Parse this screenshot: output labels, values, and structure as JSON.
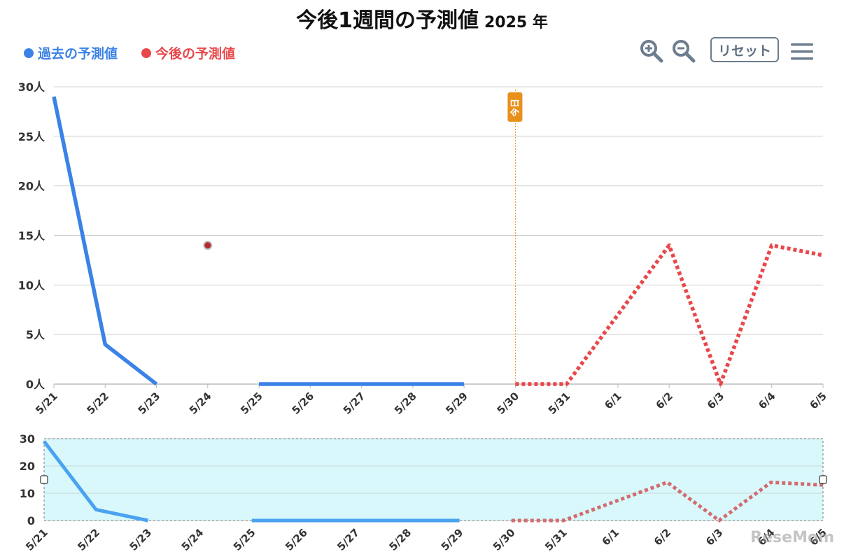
{
  "title": {
    "main": "今後1週間の予測値",
    "year": "2025 年"
  },
  "legend": {
    "past": "過去の予測値",
    "future": "今後の予測値"
  },
  "toolbar": {
    "reset_label": "リセット"
  },
  "colors": {
    "past": "#3b82e6",
    "future": "#e8474a",
    "today_line": "#e8901a",
    "navigator_fill": "#d8f8fb"
  },
  "watermark": "ReseMom",
  "chart_data": {
    "type": "line",
    "categories": [
      "5/21",
      "5/22",
      "5/23",
      "5/24",
      "5/25",
      "5/26",
      "5/27",
      "5/28",
      "5/29",
      "5/30",
      "5/31",
      "6/1",
      "6/2",
      "6/3",
      "6/4",
      "6/5"
    ],
    "ylim": [
      0,
      30
    ],
    "yticks": [
      0,
      5,
      10,
      15,
      20,
      25,
      30
    ],
    "ytick_labels": [
      "0人",
      "5人",
      "10人",
      "15人",
      "20人",
      "25人",
      "30人"
    ],
    "today_index": 9,
    "today_label": "今日",
    "series": [
      {
        "name": "過去の予測値",
        "values": [
          29,
          4,
          0,
          null,
          0,
          0,
          0,
          0,
          0,
          null,
          null,
          null,
          null,
          null,
          null,
          null
        ]
      },
      {
        "name": "今後の予測値",
        "values": [
          null,
          null,
          null,
          null,
          null,
          null,
          null,
          null,
          null,
          0,
          0,
          7,
          14,
          0,
          14,
          13
        ]
      }
    ],
    "markers": [
      {
        "x": "5/24",
        "y": 14
      }
    ],
    "navigator": {
      "yticks": [
        0,
        10,
        20,
        30
      ],
      "ytick_labels": [
        "0",
        "10",
        "20",
        "30"
      ]
    }
  }
}
